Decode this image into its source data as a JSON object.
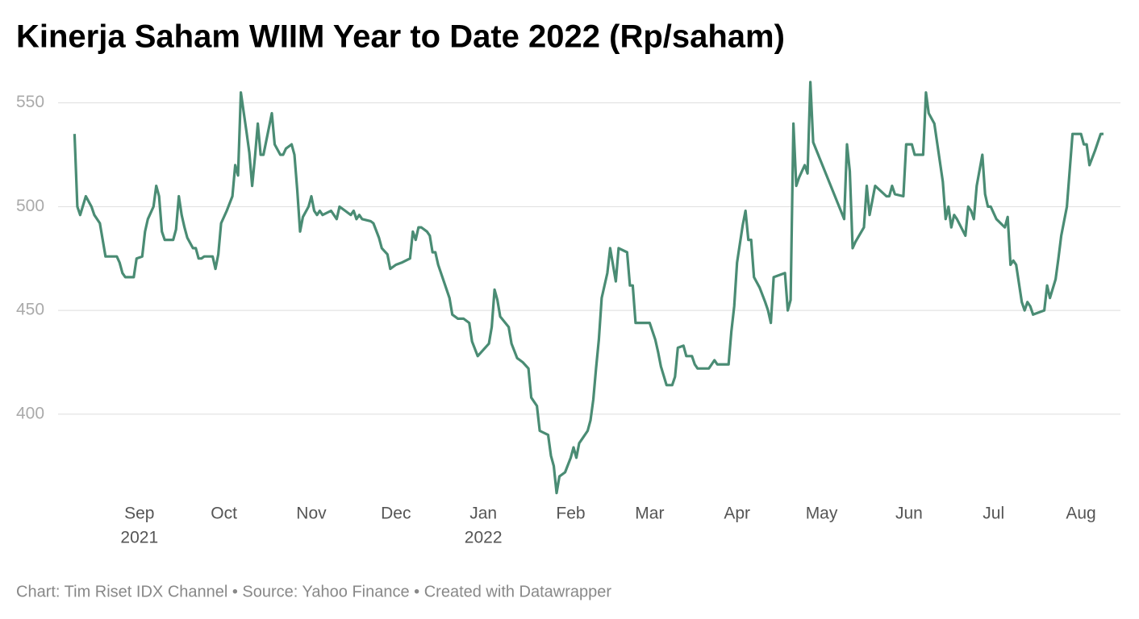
{
  "chart_data": {
    "type": "line",
    "title": "Kinerja Saham WIIM Year to Date 2022 (Rp/saham)",
    "footer": "Chart: Tim Riset IDX Channel • Source: Yahoo Finance • Created with Datawrapper",
    "color": "#4a8c74",
    "grid": true,
    "xlim": [
      -19,
      373
    ],
    "ylim": [
      358,
      565
    ],
    "yticks": [
      400,
      450,
      500,
      550
    ],
    "xticks": [
      {
        "value": 25,
        "label": "Sep",
        "year": "2021"
      },
      {
        "value": 55,
        "label": "Oct"
      },
      {
        "value": 86,
        "label": "Nov"
      },
      {
        "value": 116,
        "label": "Dec"
      },
      {
        "value": 147,
        "label": "Jan",
        "year": "2022"
      },
      {
        "value": 178,
        "label": "Feb"
      },
      {
        "value": 206,
        "label": "Mar"
      },
      {
        "value": 237,
        "label": "Apr"
      },
      {
        "value": 267,
        "label": "May"
      },
      {
        "value": 298,
        "label": "Jun"
      },
      {
        "value": 328,
        "label": "Jul"
      },
      {
        "value": 359,
        "label": "Aug"
      }
    ],
    "x": [
      2,
      3,
      4,
      6,
      8,
      9,
      11,
      13,
      17,
      18,
      19,
      20,
      23,
      24,
      26,
      27,
      28,
      30,
      31,
      32,
      33,
      34,
      37,
      38,
      39,
      40,
      41,
      42,
      44,
      45,
      46,
      47,
      48,
      51,
      52,
      53,
      54,
      56,
      58,
      59,
      60,
      61,
      63,
      64,
      65,
      66,
      67,
      68,
      69,
      72,
      73,
      75,
      76,
      77,
      79,
      80,
      81,
      82,
      83,
      85,
      86,
      87,
      88,
      89,
      90,
      93,
      95,
      96,
      98,
      99,
      100,
      101,
      102,
      103,
      104,
      107,
      108,
      110,
      111,
      113,
      114,
      116,
      118,
      121,
      122,
      123,
      124,
      125,
      127,
      128,
      129,
      130,
      131,
      135,
      136,
      138,
      140,
      142,
      143,
      145,
      149,
      150,
      151,
      152,
      153,
      156,
      157,
      159,
      160,
      161,
      163,
      164,
      166,
      167,
      170,
      171,
      172,
      173,
      174,
      176,
      178,
      179,
      180,
      181,
      182,
      184,
      185,
      186,
      187,
      188,
      189,
      191,
      192,
      194,
      195,
      198,
      199,
      200,
      201,
      206,
      208,
      209,
      210,
      212,
      214,
      215,
      216,
      218,
      219,
      221,
      222,
      223,
      227,
      228,
      229,
      230,
      234,
      235,
      236,
      237,
      239,
      240,
      241,
      242,
      243,
      245,
      247,
      248,
      249,
      250,
      254,
      255,
      256,
      257,
      258,
      259,
      261,
      262,
      263,
      264,
      275,
      276,
      277,
      278,
      279,
      282,
      283,
      284,
      286,
      290,
      291,
      292,
      293,
      296,
      297,
      299,
      300,
      303,
      304,
      305,
      307,
      310,
      311,
      312,
      313,
      314,
      315,
      318,
      319,
      320,
      321,
      322,
      324,
      325,
      326,
      327,
      329,
      332,
      333,
      334,
      335,
      336,
      338,
      339,
      340,
      341,
      342,
      346,
      347,
      348,
      350,
      351,
      352,
      354,
      356,
      359,
      360,
      361,
      362,
      364,
      366,
      367
    ],
    "values": [
      535,
      500,
      496,
      505,
      500,
      496,
      492,
      476,
      476,
      473,
      468,
      466,
      466,
      475,
      476,
      488,
      494,
      500,
      510,
      505,
      488,
      484,
      484,
      489,
      505,
      496,
      490,
      485,
      480,
      480,
      475,
      475,
      476,
      476,
      470,
      477,
      492,
      498,
      505,
      520,
      515,
      555,
      536,
      526,
      510,
      524,
      540,
      525,
      525,
      545,
      530,
      525,
      525,
      528,
      530,
      525,
      508,
      488,
      495,
      500,
      505,
      498,
      496,
      498,
      496,
      498,
      494,
      500,
      498,
      497,
      496,
      498,
      494,
      496,
      494,
      493,
      492,
      485,
      480,
      477,
      470,
      472,
      473,
      475,
      488,
      484,
      490,
      490,
      488,
      486,
      478,
      478,
      472,
      456,
      448,
      446,
      446,
      444,
      435,
      428,
      434,
      442,
      460,
      455,
      447,
      442,
      434,
      427,
      426,
      425,
      422,
      408,
      404,
      392,
      390,
      380,
      375,
      362,
      370,
      372,
      379,
      384,
      379,
      386,
      388,
      392,
      397,
      407,
      422,
      436,
      456,
      468,
      480,
      464,
      480,
      478,
      462,
      462,
      444,
      444,
      436,
      430,
      423,
      414,
      414,
      418,
      432,
      433,
      428,
      428,
      424,
      422,
      422,
      424,
      426,
      424,
      424,
      440,
      452,
      473,
      491,
      498,
      484,
      484,
      466,
      461,
      454,
      450,
      444,
      466,
      468,
      450,
      455,
      540,
      510,
      514,
      520,
      516,
      560,
      531,
      494,
      530,
      517,
      480,
      483,
      490,
      510,
      496,
      510,
      505,
      505,
      510,
      506,
      505,
      530,
      530,
      525,
      525,
      555,
      545,
      540,
      512,
      494,
      500,
      490,
      496,
      494,
      486,
      500,
      498,
      494,
      510,
      525,
      506,
      500,
      500,
      494,
      490,
      495,
      472,
      474,
      472,
      454,
      450,
      454,
      452,
      448,
      450,
      462,
      456,
      465,
      475,
      486,
      500,
      535,
      535,
      530,
      530,
      520,
      527,
      535,
      535
    ]
  }
}
